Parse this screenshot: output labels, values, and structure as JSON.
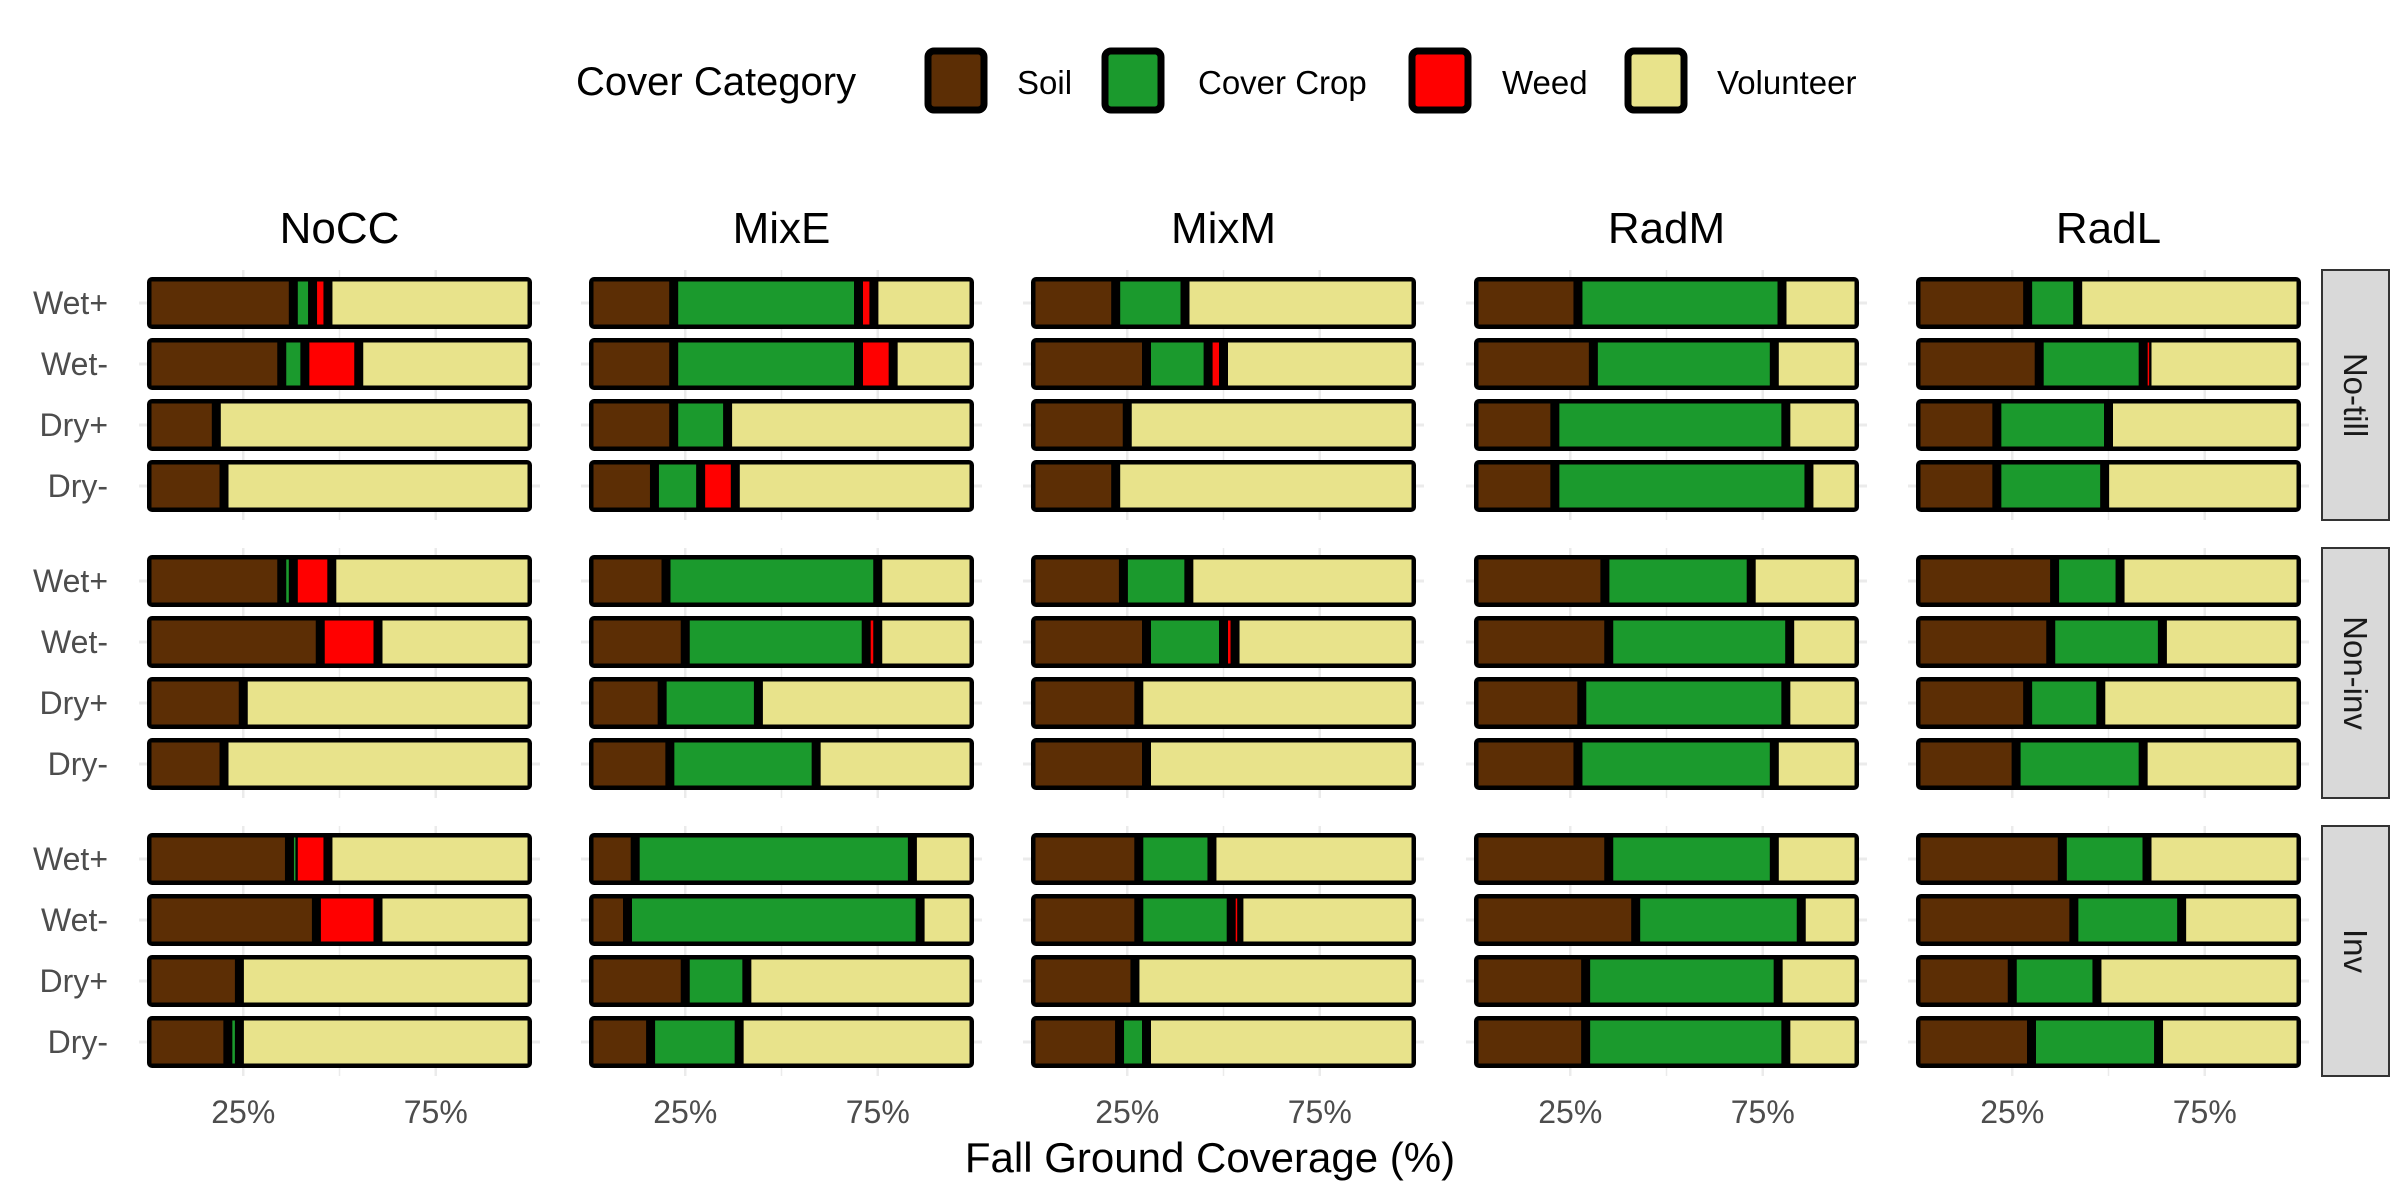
{
  "colors": {
    "Soil": "#5c2e05",
    "Cover Crop": "#1b9a2d",
    "Weed": "#ff0000",
    "Volunteer": "#e8e38b",
    "outline": "#000000",
    "strip_bg": "#d9d9d9",
    "grid": "#ebebeb"
  },
  "chart_data": {
    "type": "bar",
    "orientation": "horizontal",
    "stacked": true,
    "xlabel": "Fall Ground Coverage (%)",
    "ylabel": "",
    "xlim": [
      0,
      100
    ],
    "x_ticks": [
      25,
      75
    ],
    "x_tick_labels": [
      "25%",
      "75%"
    ],
    "grid": true,
    "legend": {
      "title": "Cover Category",
      "position": "top",
      "entries": [
        "Soil",
        "Cover Crop",
        "Weed",
        "Volunteer"
      ]
    },
    "column_facets": [
      "NoCC",
      "MixE",
      "MixM",
      "RadM",
      "RadL"
    ],
    "row_facets": [
      "No-till",
      "Non-inv",
      "Inv"
    ],
    "categories": [
      "Wet+",
      "Wet-",
      "Dry+",
      "Dry-"
    ],
    "series_order": [
      "Soil",
      "Cover Crop",
      "Weed",
      "Volunteer"
    ],
    "panels": [
      {
        "row": "No-till",
        "col": "NoCC",
        "bars": [
          {
            "category": "Wet+",
            "values": [
              38,
              5,
              4,
              53
            ]
          },
          {
            "category": "Wet-",
            "values": [
              35,
              6,
              14,
              45
            ]
          },
          {
            "category": "Dry+",
            "values": [
              18,
              0,
              0,
              82
            ]
          },
          {
            "category": "Dry-",
            "values": [
              20,
              0,
              0,
              80
            ]
          }
        ]
      },
      {
        "row": "No-till",
        "col": "MixE",
        "bars": [
          {
            "category": "Wet+",
            "values": [
              22,
              48,
              4,
              26
            ]
          },
          {
            "category": "Wet-",
            "values": [
              22,
              48,
              9,
              21
            ]
          },
          {
            "category": "Dry+",
            "values": [
              22,
              14,
              0,
              64
            ]
          },
          {
            "category": "Dry-",
            "values": [
              17,
              12,
              9,
              62
            ]
          }
        ]
      },
      {
        "row": "No-till",
        "col": "MixM",
        "bars": [
          {
            "category": "Wet+",
            "values": [
              22,
              18,
              0,
              60
            ]
          },
          {
            "category": "Wet-",
            "values": [
              30,
              16,
              4,
              50
            ]
          },
          {
            "category": "Dry+",
            "values": [
              25,
              0,
              0,
              75
            ]
          },
          {
            "category": "Dry-",
            "values": [
              22,
              0,
              0,
              78
            ]
          }
        ]
      },
      {
        "row": "No-till",
        "col": "RadM",
        "bars": [
          {
            "category": "Wet+",
            "values": [
              27,
              53,
              0,
              20
            ]
          },
          {
            "category": "Wet-",
            "values": [
              31,
              47,
              0,
              22
            ]
          },
          {
            "category": "Dry+",
            "values": [
              21,
              60,
              0,
              19
            ]
          },
          {
            "category": "Dry-",
            "values": [
              21,
              66,
              0,
              13
            ]
          }
        ]
      },
      {
        "row": "No-till",
        "col": "RadL",
        "bars": [
          {
            "category": "Wet+",
            "values": [
              29,
              13,
              0,
              58
            ]
          },
          {
            "category": "Wet-",
            "values": [
              32,
              27,
              1,
              40
            ]
          },
          {
            "category": "Dry+",
            "values": [
              21,
              29,
              0,
              50
            ]
          },
          {
            "category": "Dry-",
            "values": [
              21,
              28,
              0,
              51
            ]
          }
        ]
      },
      {
        "row": "Non-inv",
        "col": "NoCC",
        "bars": [
          {
            "category": "Wet+",
            "values": [
              35,
              3,
              10,
              52
            ]
          },
          {
            "category": "Wet-",
            "values": [
              45,
              0,
              15,
              40
            ]
          },
          {
            "category": "Dry+",
            "values": [
              25,
              0,
              0,
              75
            ]
          },
          {
            "category": "Dry-",
            "values": [
              20,
              0,
              0,
              80
            ]
          }
        ]
      },
      {
        "row": "Non-inv",
        "col": "MixE",
        "bars": [
          {
            "category": "Wet+",
            "values": [
              20,
              55,
              0,
              25
            ]
          },
          {
            "category": "Wet-",
            "values": [
              25,
              47,
              3,
              25
            ]
          },
          {
            "category": "Dry+",
            "values": [
              19,
              25,
              0,
              56
            ]
          },
          {
            "category": "Dry-",
            "values": [
              21,
              38,
              0,
              41
            ]
          }
        ]
      },
      {
        "row": "Non-inv",
        "col": "MixM",
        "bars": [
          {
            "category": "Wet+",
            "values": [
              24,
              17,
              0,
              59
            ]
          },
          {
            "category": "Wet-",
            "values": [
              30,
              20,
              3,
              47
            ]
          },
          {
            "category": "Dry+",
            "values": [
              28,
              0,
              0,
              72
            ]
          },
          {
            "category": "Dry-",
            "values": [
              30,
              0,
              0,
              70
            ]
          }
        ]
      },
      {
        "row": "Non-inv",
        "col": "RadM",
        "bars": [
          {
            "category": "Wet+",
            "values": [
              34,
              38,
              0,
              28
            ]
          },
          {
            "category": "Wet-",
            "values": [
              35,
              47,
              0,
              18
            ]
          },
          {
            "category": "Dry+",
            "values": [
              28,
              53,
              0,
              19
            ]
          },
          {
            "category": "Dry-",
            "values": [
              27,
              51,
              0,
              22
            ]
          }
        ]
      },
      {
        "row": "Non-inv",
        "col": "RadL",
        "bars": [
          {
            "category": "Wet+",
            "values": [
              36,
              17,
              0,
              47
            ]
          },
          {
            "category": "Wet-",
            "values": [
              35,
              29,
              0,
              36
            ]
          },
          {
            "category": "Dry+",
            "values": [
              29,
              19,
              0,
              52
            ]
          },
          {
            "category": "Dry-",
            "values": [
              26,
              33,
              0,
              41
            ]
          }
        ]
      },
      {
        "row": "Inv",
        "col": "NoCC",
        "bars": [
          {
            "category": "Wet+",
            "values": [
              37,
              1,
              9,
              53
            ]
          },
          {
            "category": "Wet-",
            "values": [
              44,
              0,
              16,
              40
            ]
          },
          {
            "category": "Dry+",
            "values": [
              24,
              0,
              0,
              76
            ]
          },
          {
            "category": "Dry-",
            "values": [
              21,
              3,
              0,
              76
            ]
          }
        ]
      },
      {
        "row": "Inv",
        "col": "MixE",
        "bars": [
          {
            "category": "Wet+",
            "values": [
              12,
              72,
              0,
              16
            ]
          },
          {
            "category": "Wet-",
            "values": [
              10,
              76,
              0,
              14
            ]
          },
          {
            "category": "Dry+",
            "values": [
              25,
              16,
              0,
              59
            ]
          },
          {
            "category": "Dry-",
            "values": [
              16,
              23,
              0,
              61
            ]
          }
        ]
      },
      {
        "row": "Inv",
        "col": "MixM",
        "bars": [
          {
            "category": "Wet+",
            "values": [
              28,
              19,
              0,
              53
            ]
          },
          {
            "category": "Wet-",
            "values": [
              28,
              24,
              2,
              46
            ]
          },
          {
            "category": "Dry+",
            "values": [
              27,
              0,
              0,
              73
            ]
          },
          {
            "category": "Dry-",
            "values": [
              23,
              7,
              0,
              70
            ]
          }
        ]
      },
      {
        "row": "Inv",
        "col": "RadM",
        "bars": [
          {
            "category": "Wet+",
            "values": [
              35,
              43,
              0,
              22
            ]
          },
          {
            "category": "Wet-",
            "values": [
              42,
              43,
              0,
              15
            ]
          },
          {
            "category": "Dry+",
            "values": [
              29,
              50,
              0,
              21
            ]
          },
          {
            "category": "Dry-",
            "values": [
              29,
              52,
              0,
              19
            ]
          }
        ]
      },
      {
        "row": "Inv",
        "col": "RadL",
        "bars": [
          {
            "category": "Wet+",
            "values": [
              38,
              22,
              0,
              40
            ]
          },
          {
            "category": "Wet-",
            "values": [
              41,
              28,
              0,
              31
            ]
          },
          {
            "category": "Dry+",
            "values": [
              25,
              22,
              0,
              53
            ]
          },
          {
            "category": "Dry-",
            "values": [
              30,
              33,
              0,
              37
            ]
          }
        ]
      }
    ]
  }
}
